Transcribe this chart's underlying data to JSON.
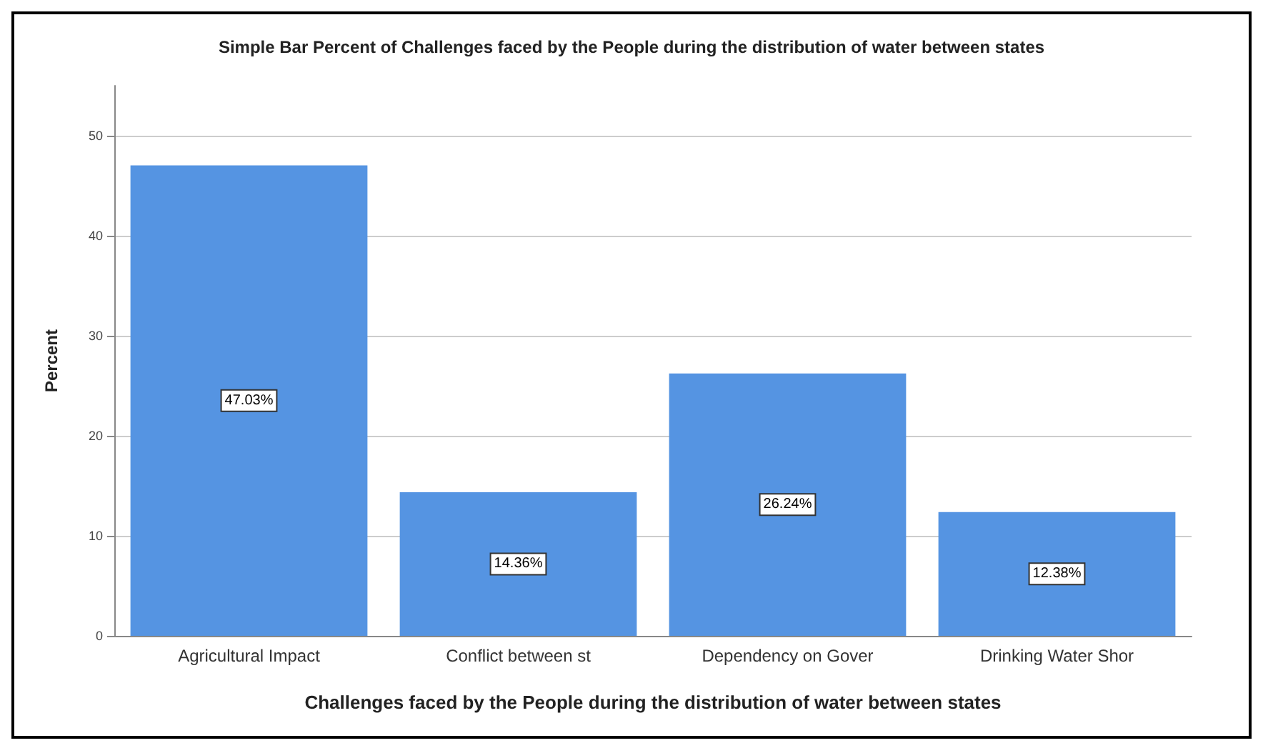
{
  "chart_data": {
    "type": "bar",
    "title": "Simple Bar Percent of Challenges faced by the People during the distribution of water between states",
    "xlabel": "Challenges faced by the People during the distribution of water between states",
    "ylabel": "Percent",
    "categories": [
      "Agricultural Impact",
      "Conflict between st",
      "Dependency on Gover",
      "Drinking Water Shor"
    ],
    "values": [
      47.03,
      14.36,
      26.24,
      12.38
    ],
    "value_labels": [
      "47.03%",
      "14.36%",
      "26.24%",
      "12.38%"
    ],
    "color": "#5594e2",
    "ylim": [
      0,
      55
    ],
    "yticks": [
      0,
      10,
      20,
      30,
      40,
      50
    ],
    "grid": "y"
  }
}
